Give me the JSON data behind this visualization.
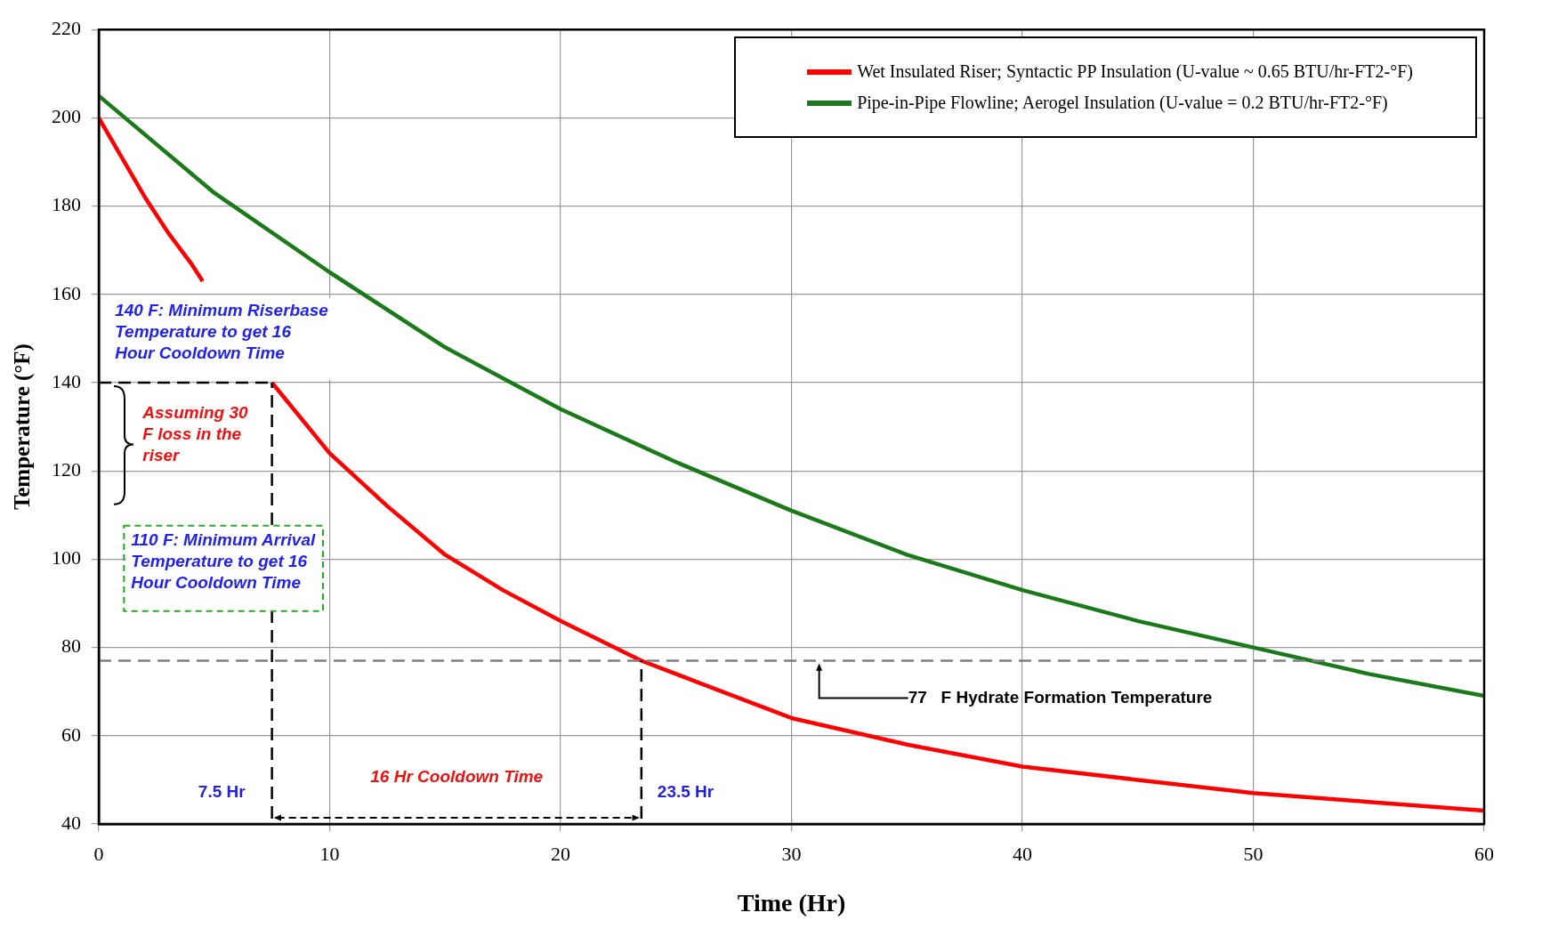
{
  "chart_data": {
    "type": "line",
    "xlabel": "Time (Hr)",
    "ylabel": "Temperature (°F)",
    "series": [
      {
        "name": "Wet Insulated Riser;  Syntactic PP Insulation (U-value ~ 0.65 BTU/hr-FT2-°F)",
        "color": "#ff0000",
        "x": [
          0,
          1,
          2,
          3,
          4,
          4.5,
          5,
          7.5,
          10,
          12.5,
          15,
          17.5,
          20,
          23.5,
          26,
          30,
          35,
          40,
          45,
          50,
          55,
          60
        ],
        "values": [
          200,
          191,
          182,
          174,
          167,
          163,
          null,
          140,
          124,
          112,
          101,
          93,
          86,
          77,
          72,
          64,
          58,
          53,
          50,
          47,
          45,
          43
        ]
      },
      {
        "name": "Pipe-in-Pipe  Flowline;   Aerogel  Insulation (U-value = 0.2 BTU/hr-FT2-°F)",
        "color": "#1a7a1a",
        "x": [
          0,
          5,
          10,
          15,
          20,
          25,
          30,
          35,
          40,
          45,
          50,
          55,
          60
        ],
        "values": [
          205,
          183,
          165,
          148,
          134,
          122,
          111,
          101,
          93,
          86,
          80,
          74,
          69
        ]
      }
    ],
    "xlim": [
      0,
      60
    ],
    "xticks": [
      0,
      10,
      20,
      30,
      40,
      50,
      60
    ],
    "ylim": [
      40,
      220
    ],
    "yticks": [
      40,
      60,
      80,
      100,
      120,
      140,
      160,
      180,
      200,
      220
    ],
    "grid": true,
    "legend": "top right",
    "marker": "none",
    "line_style": "solid",
    "ref_lines": [
      {
        "axis": "y",
        "value": 77,
        "label": "77   F Hydrate Formation Temperature",
        "color": "#808080",
        "line_style": "dashed"
      },
      {
        "axis": "y",
        "value": 140,
        "color": "#000000",
        "line_style": "dashed"
      },
      {
        "axis": "x",
        "value": 7.5,
        "label": "7.5 Hr",
        "color": "#000000",
        "line_style": "dashed"
      },
      {
        "axis": "x",
        "value": 23.5,
        "label": "23.5 Hr",
        "color": "#000000",
        "line_style": "dashed"
      }
    ],
    "annotations": [
      "140 F: Minimum Riserbase Temperature to get 16 Hour Cooldown Time",
      "Assuming 30 F loss in the riser",
      "110 F: Minimum Arrival Temperature to get 16 Hour Cooldown Time",
      "16 Hr Cooldown Time"
    ]
  }
}
